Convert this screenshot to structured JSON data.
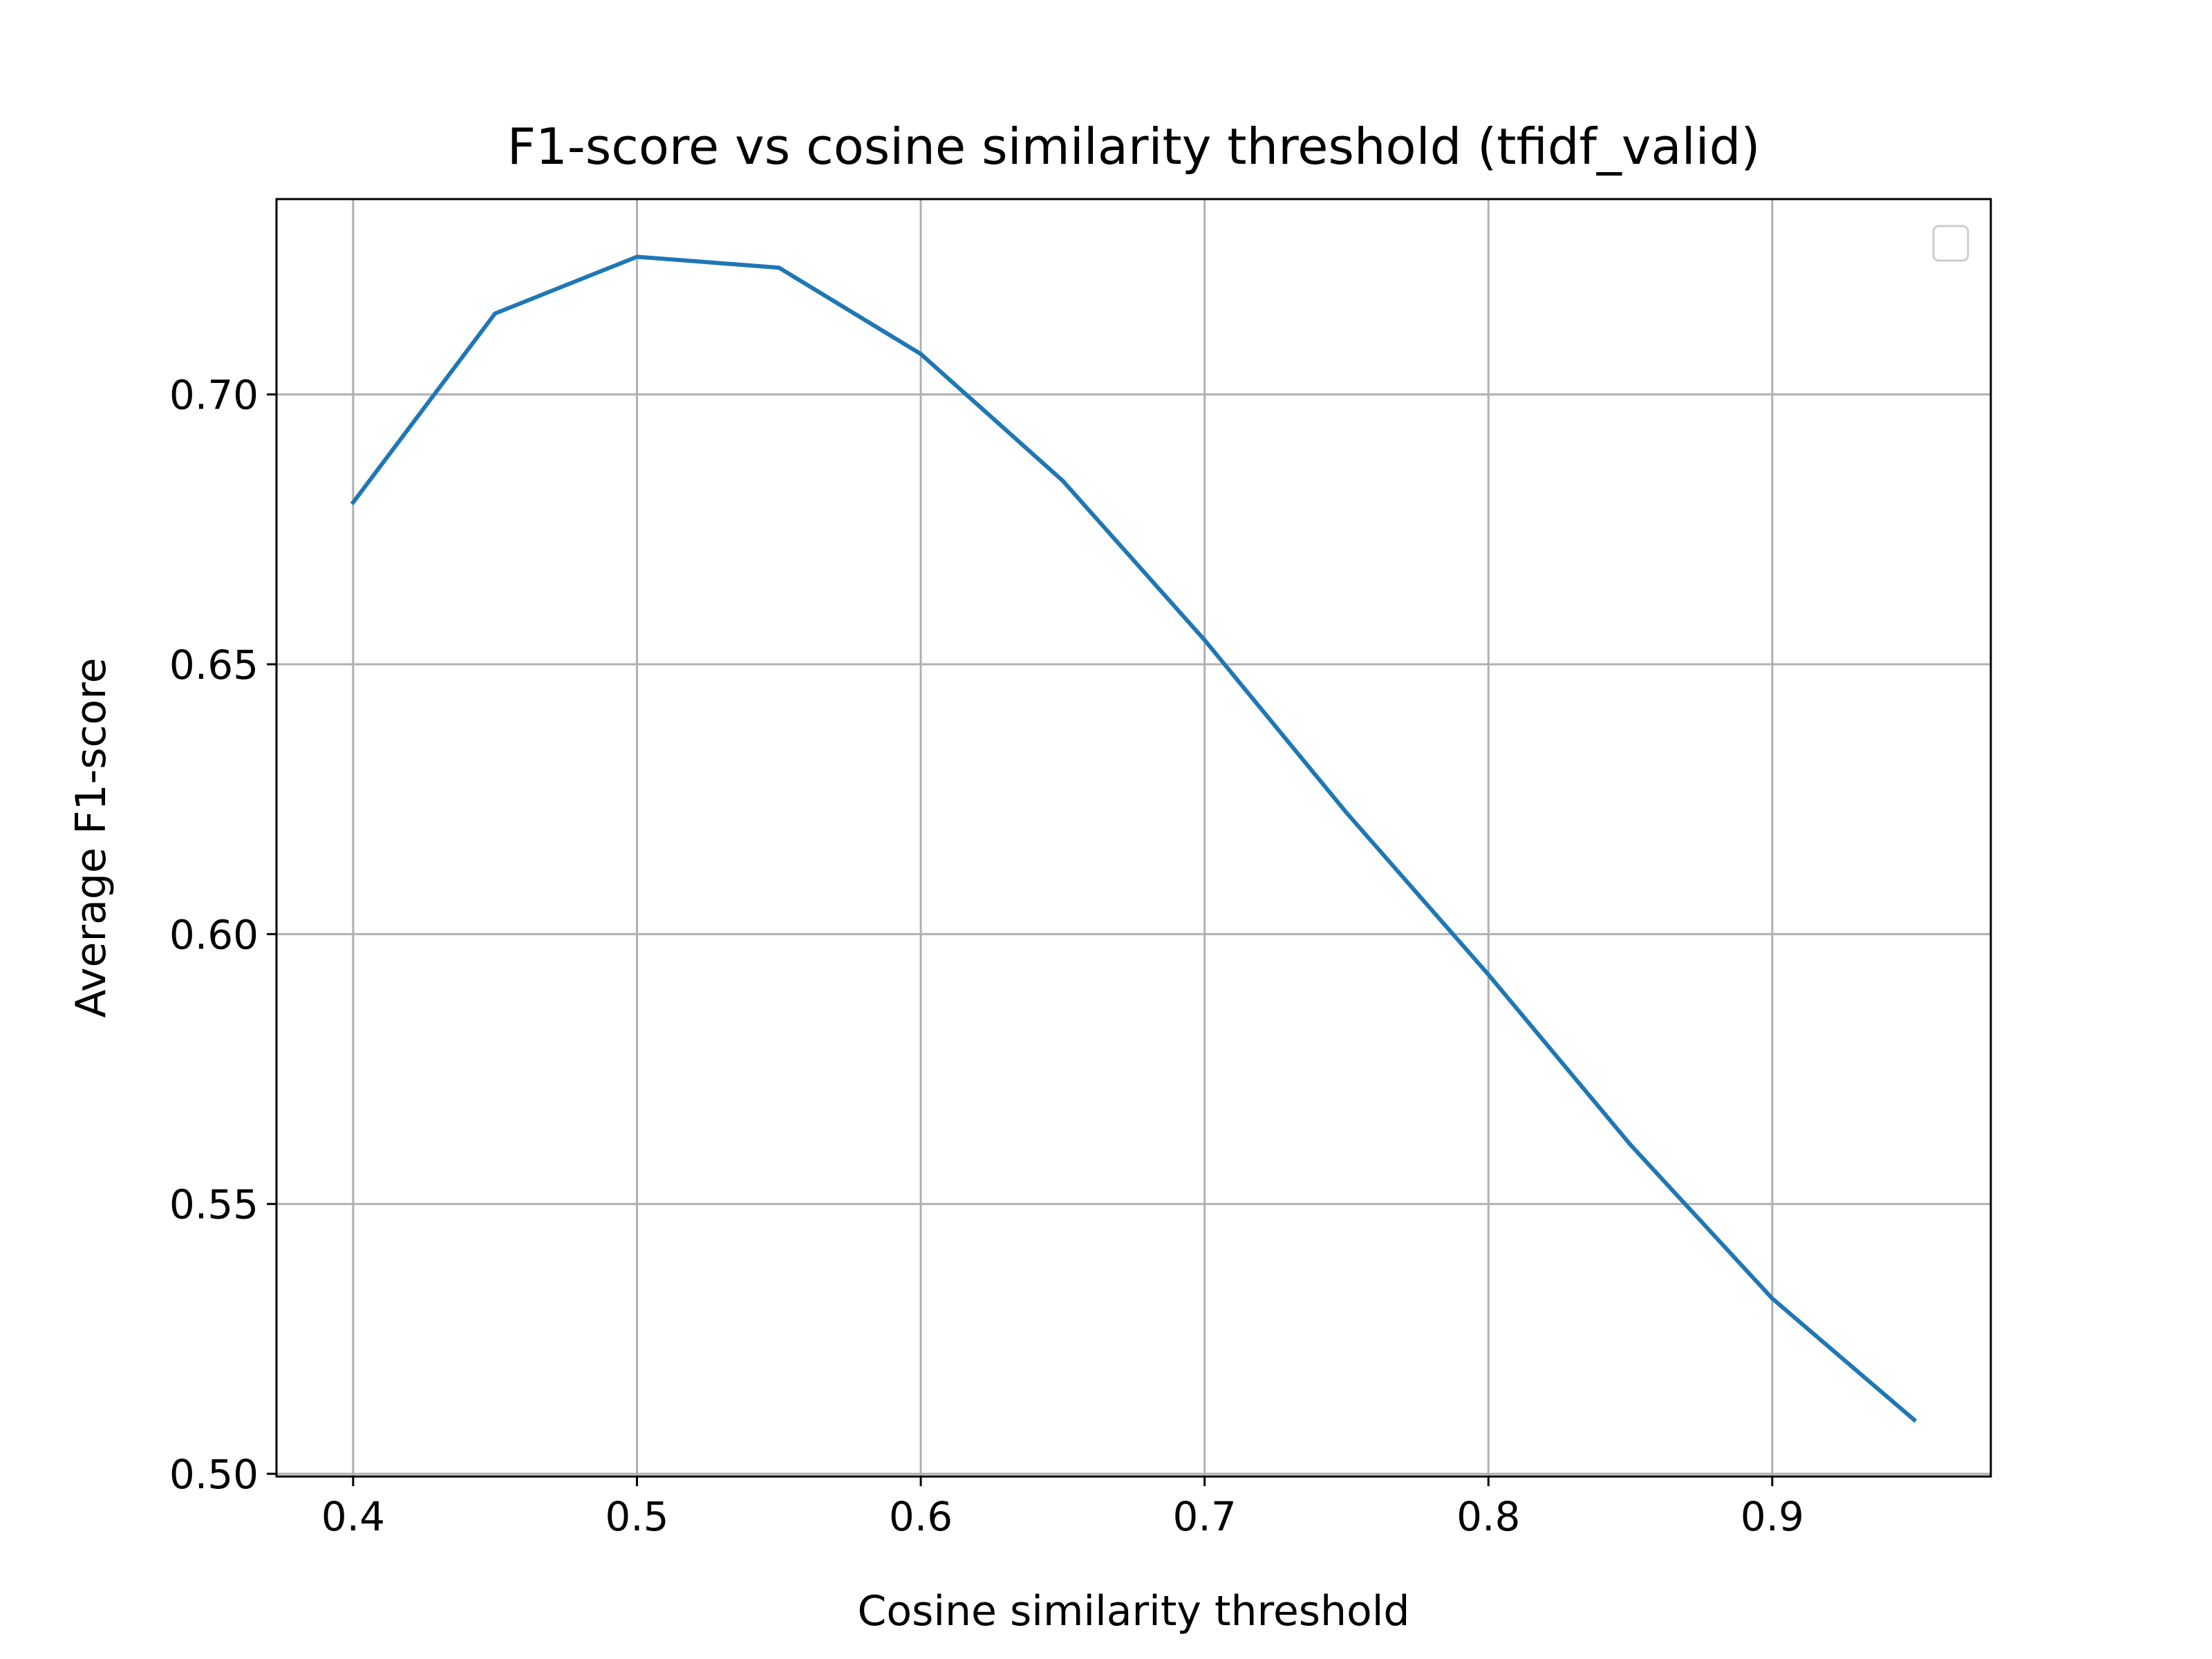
{
  "chart_data": {
    "type": "line",
    "title": "F1-score vs cosine similarity threshold (tfidf_valid)",
    "xlabel": "Cosine similarity threshold",
    "ylabel": "Average F1-score",
    "xlim": [
      0.373,
      0.977
    ],
    "ylim": [
      0.4995,
      0.7362
    ],
    "xticks": [
      0.4,
      0.5,
      0.6,
      0.7,
      0.8,
      0.9
    ],
    "xtick_labels": [
      "0.4",
      "0.5",
      "0.6",
      "0.7",
      "0.8",
      "0.9"
    ],
    "yticks": [
      0.5,
      0.55,
      0.6,
      0.65,
      0.7
    ],
    "ytick_labels": [
      "0.50",
      "0.55",
      "0.60",
      "0.65",
      "0.70"
    ],
    "grid": true,
    "legend": {
      "placement": "top-right",
      "entries": []
    },
    "series": [
      {
        "color": "#1f77b4",
        "x": [
          0.4,
          0.45,
          0.5,
          0.55,
          0.6,
          0.65,
          0.7,
          0.75,
          0.8,
          0.85,
          0.9,
          0.95
        ],
        "y": [
          0.68,
          0.715,
          0.7255,
          0.7235,
          0.7075,
          0.684,
          0.6545,
          0.6225,
          0.5925,
          0.561,
          0.5325,
          0.51
        ]
      }
    ]
  }
}
